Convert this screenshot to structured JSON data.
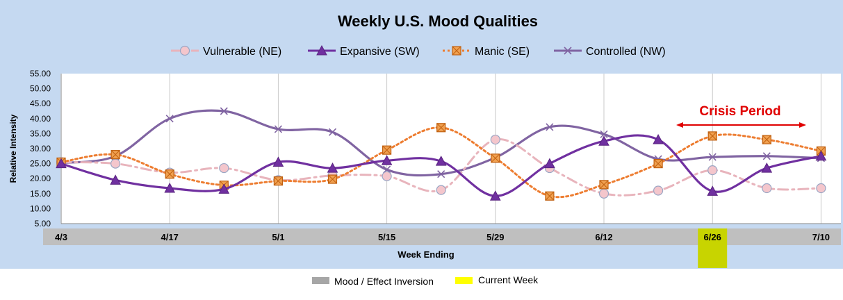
{
  "chart_data": {
    "type": "line",
    "title": "Weekly U.S. Mood Qualities",
    "xlabel": "Week Ending",
    "ylabel": "Relative Intensity",
    "ylim": [
      5,
      55
    ],
    "yticks": [
      "5.00",
      "10.00",
      "15.00",
      "20.00",
      "25.00",
      "30.00",
      "35.00",
      "40.00",
      "45.00",
      "50.00",
      "55.00"
    ],
    "grid": "vertical",
    "legend_position": "top",
    "x": [
      "4/3",
      "4/10",
      "4/17",
      "4/24",
      "5/1",
      "5/8",
      "5/15",
      "5/22",
      "5/29",
      "6/5",
      "6/12",
      "6/19",
      "6/26",
      "7/3",
      "7/10"
    ],
    "x_tick_labels": [
      "4/3",
      "",
      "4/17",
      "",
      "5/1",
      "",
      "5/15",
      "",
      "5/29",
      "",
      "6/12",
      "",
      "6/26",
      "",
      "7/10"
    ],
    "series": [
      {
        "name": "Vulnerable (NE)",
        "values": [
          25.5,
          25.0,
          22.0,
          23.5,
          19.5,
          21.0,
          20.8,
          16.2,
          33.0,
          23.5,
          15.0,
          16.0,
          22.8,
          16.8,
          16.8
        ],
        "color": "#e8b4bc",
        "marker": "circle",
        "line": "dashdot"
      },
      {
        "name": "Expansive (SW)",
        "values": [
          25.0,
          19.5,
          16.8,
          16.5,
          25.5,
          23.5,
          26.0,
          25.8,
          14.2,
          25.0,
          32.5,
          33.0,
          15.8,
          23.5,
          27.5
        ],
        "color": "#7030a0",
        "marker": "triangle",
        "line": "solid"
      },
      {
        "name": "Manic (SE)",
        "values": [
          25.5,
          28.0,
          21.5,
          17.8,
          19.2,
          19.8,
          29.5,
          37.0,
          26.8,
          14.2,
          18.0,
          25.0,
          34.2,
          33.0,
          29.2
        ],
        "color": "#ed7d31",
        "marker": "square",
        "line": "dotted"
      },
      {
        "name": "Controlled (NW)",
        "values": [
          25.2,
          27.5,
          40.0,
          42.5,
          36.5,
          35.5,
          23.0,
          21.5,
          27.0,
          37.2,
          34.8,
          26.5,
          27.2,
          27.5,
          26.8
        ],
        "color": "#8064a2",
        "marker": "x",
        "line": "solid"
      }
    ],
    "annotations": [
      {
        "text": "Crisis Period",
        "color": "#e00000",
        "from": "6/19",
        "to": "7/10"
      }
    ],
    "band_legend": [
      {
        "label": "Mood / Effect Inversion",
        "color": "#a6a6a6"
      },
      {
        "label": "Current Week",
        "color": "#ffff00"
      }
    ],
    "current_week": "6/26",
    "colors": {
      "background": "#c5d9f1",
      "plot_area": "#ffffff",
      "axis_band": "#bfbfbf",
      "current_week": "#c8d400"
    }
  }
}
